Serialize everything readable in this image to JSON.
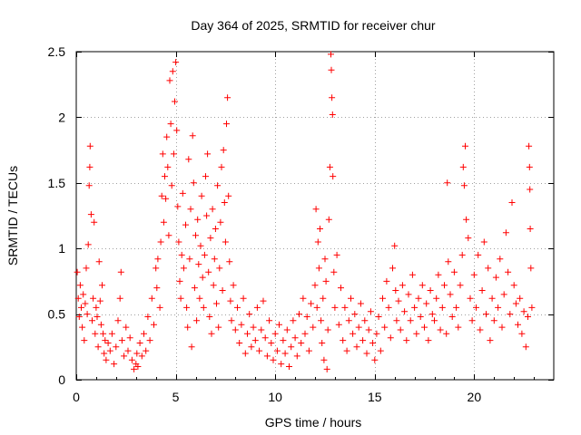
{
  "chart_data": {
    "type": "scatter",
    "title": "Day 364 of 2025, SRMTID for receiver chur",
    "xlabel": "GPS time / hours",
    "ylabel": "SRMTID / TECUs",
    "xlim": [
      0,
      24
    ],
    "ylim": [
      0,
      2.5
    ],
    "xticks": [
      0,
      5,
      10,
      15,
      20
    ],
    "xtick_labels": [
      "0",
      "5",
      "10",
      "15",
      "20"
    ],
    "yticks": [
      0,
      0.5,
      1,
      1.5,
      2,
      2.5
    ],
    "ytick_labels": [
      "0",
      "0.5",
      "1",
      "1.5",
      "2",
      "2.5"
    ],
    "grid": true,
    "marker": "+",
    "color": "#ff0000",
    "series": [
      {
        "name": "SRMTID",
        "points": [
          [
            0.05,
            0.82
          ],
          [
            0.1,
            0.62
          ],
          [
            0.15,
            0.48
          ],
          [
            0.2,
            0.72
          ],
          [
            0.25,
            0.55
          ],
          [
            0.3,
            0.4
          ],
          [
            0.35,
            0.65
          ],
          [
            0.4,
            0.3
          ],
          [
            0.45,
            0.58
          ],
          [
            0.5,
            0.85
          ],
          [
            0.55,
            0.5
          ],
          [
            0.6,
            1.03
          ],
          [
            0.65,
            1.48
          ],
          [
            0.68,
            1.62
          ],
          [
            0.7,
            1.78
          ],
          [
            0.75,
            1.26
          ],
          [
            0.8,
            0.45
          ],
          [
            0.85,
            0.62
          ],
          [
            0.9,
            1.2
          ],
          [
            0.95,
            0.35
          ],
          [
            1.0,
            0.55
          ],
          [
            1.05,
            0.48
          ],
          [
            1.1,
            0.25
          ],
          [
            1.15,
            0.9
          ],
          [
            1.2,
            0.6
          ],
          [
            1.25,
            0.42
          ],
          [
            1.3,
            0.72
          ],
          [
            1.35,
            0.35
          ],
          [
            1.4,
            0.2
          ],
          [
            1.45,
            0.3
          ],
          [
            1.5,
            0.15
          ],
          [
            1.6,
            0.28
          ],
          [
            1.7,
            0.22
          ],
          [
            1.8,
            0.35
          ],
          [
            1.9,
            0.12
          ],
          [
            2.0,
            0.25
          ],
          [
            2.1,
            0.45
          ],
          [
            2.2,
            0.62
          ],
          [
            2.25,
            0.82
          ],
          [
            2.3,
            0.3
          ],
          [
            2.4,
            0.18
          ],
          [
            2.5,
            0.4
          ],
          [
            2.6,
            0.22
          ],
          [
            2.7,
            0.32
          ],
          [
            2.8,
            0.15
          ],
          [
            2.9,
            0.08
          ],
          [
            3.0,
            0.12
          ],
          [
            3.05,
            0.2
          ],
          [
            3.1,
            0.1
          ],
          [
            3.2,
            0.28
          ],
          [
            3.3,
            0.18
          ],
          [
            3.4,
            0.35
          ],
          [
            3.5,
            0.22
          ],
          [
            3.6,
            0.48
          ],
          [
            3.7,
            0.3
          ],
          [
            3.8,
            0.62
          ],
          [
            3.9,
            0.42
          ],
          [
            4.0,
            0.85
          ],
          [
            4.05,
            0.7
          ],
          [
            4.1,
            0.92
          ],
          [
            4.2,
            0.55
          ],
          [
            4.25,
            1.05
          ],
          [
            4.3,
            1.4
          ],
          [
            4.35,
            1.72
          ],
          [
            4.4,
            1.2
          ],
          [
            4.45,
            1.55
          ],
          [
            4.5,
            1.38
          ],
          [
            4.55,
            1.85
          ],
          [
            4.6,
            1.62
          ],
          [
            4.65,
            1.1
          ],
          [
            4.7,
            2.28
          ],
          [
            4.75,
            1.95
          ],
          [
            4.8,
            1.48
          ],
          [
            4.85,
            2.35
          ],
          [
            4.9,
            1.72
          ],
          [
            4.95,
            2.12
          ],
          [
            5.0,
            2.42
          ],
          [
            5.05,
            1.9
          ],
          [
            5.1,
            1.32
          ],
          [
            5.15,
            1.05
          ],
          [
            5.2,
            0.75
          ],
          [
            5.25,
            0.62
          ],
          [
            5.3,
            0.95
          ],
          [
            5.35,
            1.42
          ],
          [
            5.4,
            0.85
          ],
          [
            5.5,
            1.18
          ],
          [
            5.55,
            0.55
          ],
          [
            5.6,
            0.4
          ],
          [
            5.65,
            1.68
          ],
          [
            5.7,
            0.92
          ],
          [
            5.75,
            1.3
          ],
          [
            5.8,
            0.25
          ],
          [
            5.85,
            1.86
          ],
          [
            5.9,
            1.5
          ],
          [
            5.95,
            0.7
          ],
          [
            6.0,
            1.1
          ],
          [
            6.05,
            0.45
          ],
          [
            6.1,
            1.22
          ],
          [
            6.15,
            0.88
          ],
          [
            6.2,
            0.62
          ],
          [
            6.25,
            1.02
          ],
          [
            6.3,
            1.4
          ],
          [
            6.35,
            0.78
          ],
          [
            6.4,
            0.55
          ],
          [
            6.45,
            0.95
          ],
          [
            6.5,
            1.55
          ],
          [
            6.55,
            1.25
          ],
          [
            6.6,
            1.72
          ],
          [
            6.65,
            0.82
          ],
          [
            6.7,
            0.48
          ],
          [
            6.75,
            1.08
          ],
          [
            6.8,
            0.35
          ],
          [
            6.85,
            1.3
          ],
          [
            6.9,
            0.72
          ],
          [
            6.95,
            0.92
          ],
          [
            7.0,
            1.15
          ],
          [
            7.05,
            0.58
          ],
          [
            7.1,
            1.48
          ],
          [
            7.15,
            0.4
          ],
          [
            7.2,
            0.85
          ],
          [
            7.25,
            1.2
          ],
          [
            7.3,
            1.62
          ],
          [
            7.35,
            0.68
          ],
          [
            7.4,
            1.75
          ],
          [
            7.45,
            1.35
          ],
          [
            7.5,
            1.05
          ],
          [
            7.55,
            1.95
          ],
          [
            7.6,
            2.15
          ],
          [
            7.65,
            1.4
          ],
          [
            7.7,
            0.9
          ],
          [
            7.75,
            0.6
          ],
          [
            7.8,
            0.45
          ],
          [
            7.9,
            0.72
          ],
          [
            8.0,
            0.38
          ],
          [
            8.1,
            0.55
          ],
          [
            8.2,
            0.28
          ],
          [
            8.3,
            0.42
          ],
          [
            8.4,
            0.62
          ],
          [
            8.5,
            0.2
          ],
          [
            8.6,
            0.35
          ],
          [
            8.7,
            0.5
          ],
          [
            8.8,
            0.25
          ],
          [
            8.9,
            0.4
          ],
          [
            9.0,
            0.3
          ],
          [
            9.1,
            0.55
          ],
          [
            9.2,
            0.22
          ],
          [
            9.3,
            0.38
          ],
          [
            9.4,
            0.6
          ],
          [
            9.5,
            0.32
          ],
          [
            9.6,
            0.18
          ],
          [
            9.7,
            0.45
          ],
          [
            9.8,
            0.28
          ],
          [
            9.9,
            0.15
          ],
          [
            10.0,
            0.35
          ],
          [
            10.1,
            0.22
          ],
          [
            10.2,
            0.42
          ],
          [
            10.3,
            0.12
          ],
          [
            10.4,
            0.3
          ],
          [
            10.5,
            0.2
          ],
          [
            10.6,
            0.38
          ],
          [
            10.7,
            0.1
          ],
          [
            10.8,
            0.25
          ],
          [
            10.9,
            0.45
          ],
          [
            11.0,
            0.32
          ],
          [
            11.1,
            0.18
          ],
          [
            11.2,
            0.5
          ],
          [
            11.3,
            0.28
          ],
          [
            11.4,
            0.62
          ],
          [
            11.5,
            0.35
          ],
          [
            11.6,
            0.48
          ],
          [
            11.7,
            0.22
          ],
          [
            11.8,
            0.58
          ],
          [
            11.9,
            0.4
          ],
          [
            12.0,
            0.72
          ],
          [
            12.05,
            1.3
          ],
          [
            12.1,
            0.55
          ],
          [
            12.15,
            1.05
          ],
          [
            12.2,
            0.85
          ],
          [
            12.25,
            1.15
          ],
          [
            12.3,
            0.45
          ],
          [
            12.35,
            0.28
          ],
          [
            12.4,
            0.62
          ],
          [
            12.45,
            0.15
          ],
          [
            12.5,
            0.92
          ],
          [
            12.55,
            0.75
          ],
          [
            12.6,
            0.08
          ],
          [
            12.65,
            0.38
          ],
          [
            12.7,
            1.22
          ],
          [
            12.75,
            1.62
          ],
          [
            12.8,
            2.48
          ],
          [
            12.82,
            2.36
          ],
          [
            12.85,
            2.15
          ],
          [
            12.88,
            2.02
          ],
          [
            12.9,
            1.55
          ],
          [
            12.95,
            0.82
          ],
          [
            13.0,
            0.55
          ],
          [
            13.1,
            0.95
          ],
          [
            13.2,
            0.42
          ],
          [
            13.3,
            0.7
          ],
          [
            13.4,
            0.3
          ],
          [
            13.5,
            0.55
          ],
          [
            13.6,
            0.22
          ],
          [
            13.7,
            0.45
          ],
          [
            13.8,
            0.62
          ],
          [
            13.9,
            0.35
          ],
          [
            14.0,
            0.5
          ],
          [
            14.1,
            0.25
          ],
          [
            14.2,
            0.4
          ],
          [
            14.3,
            0.58
          ],
          [
            14.4,
            0.3
          ],
          [
            14.5,
            0.45
          ],
          [
            14.6,
            0.2
          ],
          [
            14.7,
            0.38
          ],
          [
            14.8,
            0.52
          ],
          [
            14.9,
            0.28
          ],
          [
            15.0,
            0.15
          ],
          [
            15.1,
            0.35
          ],
          [
            15.2,
            0.48
          ],
          [
            15.3,
            0.22
          ],
          [
            15.4,
            0.62
          ],
          [
            15.5,
            0.4
          ],
          [
            15.6,
            0.75
          ],
          [
            15.7,
            0.55
          ],
          [
            15.8,
            0.32
          ],
          [
            15.9,
            0.85
          ],
          [
            16.0,
            1.02
          ],
          [
            16.05,
            0.68
          ],
          [
            16.1,
            0.45
          ],
          [
            16.2,
            0.6
          ],
          [
            16.3,
            0.38
          ],
          [
            16.4,
            0.72
          ],
          [
            16.5,
            0.52
          ],
          [
            16.6,
            0.3
          ],
          [
            16.7,
            0.65
          ],
          [
            16.8,
            0.45
          ],
          [
            16.9,
            0.8
          ],
          [
            17.0,
            0.55
          ],
          [
            17.1,
            0.35
          ],
          [
            17.2,
            0.62
          ],
          [
            17.3,
            0.48
          ],
          [
            17.4,
            0.72
          ],
          [
            17.5,
            0.4
          ],
          [
            17.6,
            0.58
          ],
          [
            17.7,
            0.3
          ],
          [
            17.8,
            0.68
          ],
          [
            17.9,
            0.5
          ],
          [
            18.0,
            0.45
          ],
          [
            18.1,
            0.62
          ],
          [
            18.2,
            0.8
          ],
          [
            18.3,
            0.38
          ],
          [
            18.4,
            0.55
          ],
          [
            18.5,
            0.72
          ],
          [
            18.6,
            0.35
          ],
          [
            18.65,
            1.5
          ],
          [
            18.7,
            0.9
          ],
          [
            18.8,
            0.65
          ],
          [
            18.9,
            0.48
          ],
          [
            19.0,
            0.82
          ],
          [
            19.1,
            0.55
          ],
          [
            19.2,
            0.4
          ],
          [
            19.3,
            0.72
          ],
          [
            19.4,
            0.95
          ],
          [
            19.45,
            1.62
          ],
          [
            19.5,
            1.48
          ],
          [
            19.55,
            1.78
          ],
          [
            19.6,
            1.22
          ],
          [
            19.7,
            1.08
          ],
          [
            19.8,
            0.62
          ],
          [
            19.9,
            0.45
          ],
          [
            20.0,
            0.8
          ],
          [
            20.1,
            0.55
          ],
          [
            20.2,
            0.95
          ],
          [
            20.3,
            0.38
          ],
          [
            20.4,
            0.68
          ],
          [
            20.5,
            1.05
          ],
          [
            20.6,
            0.5
          ],
          [
            20.7,
            0.85
          ],
          [
            20.8,
            0.3
          ],
          [
            20.9,
            0.62
          ],
          [
            21.0,
            0.45
          ],
          [
            21.1,
            0.78
          ],
          [
            21.2,
            0.55
          ],
          [
            21.3,
            0.92
          ],
          [
            21.4,
            0.4
          ],
          [
            21.5,
            0.65
          ],
          [
            21.6,
            1.12
          ],
          [
            21.7,
            0.82
          ],
          [
            21.8,
            0.5
          ],
          [
            21.9,
            1.35
          ],
          [
            22.0,
            0.72
          ],
          [
            22.1,
            0.58
          ],
          [
            22.2,
            0.42
          ],
          [
            22.3,
            0.62
          ],
          [
            22.4,
            0.35
          ],
          [
            22.5,
            0.52
          ],
          [
            22.6,
            0.25
          ],
          [
            22.7,
            0.48
          ],
          [
            22.75,
            1.78
          ],
          [
            22.78,
            1.62
          ],
          [
            22.8,
            1.45
          ],
          [
            22.82,
            1.15
          ],
          [
            22.85,
            0.85
          ],
          [
            22.9,
            0.55
          ]
        ]
      }
    ]
  }
}
